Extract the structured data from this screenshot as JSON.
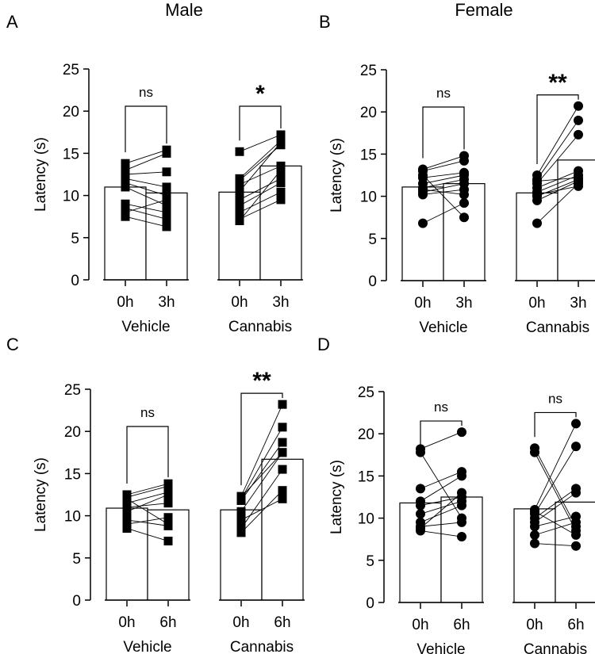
{
  "figure": {
    "column_titles": [
      "Male",
      "Female"
    ]
  },
  "chart_data": [
    {
      "panel": "A",
      "type": "bar",
      "ylabel": "Latency (s)",
      "ylim": [
        0,
        25
      ],
      "yticks": [
        0,
        5,
        10,
        15,
        20,
        25
      ],
      "marker": "square",
      "groups": [
        {
          "name": "Vehicle",
          "conditions": [
            "0h",
            "3h"
          ],
          "means": [
            11.0,
            10.3
          ],
          "pairs": [
            [
              13.8,
              15.4
            ],
            [
              13.0,
              15.0
            ],
            [
              12.5,
              12.8
            ],
            [
              12.0,
              11.0
            ],
            [
              11.5,
              10.0
            ],
            [
              11.0,
              8.8
            ],
            [
              9.0,
              8.0
            ],
            [
              8.5,
              7.2
            ],
            [
              8.0,
              9.5
            ],
            [
              7.5,
              6.3
            ]
          ],
          "significance": "ns"
        },
        {
          "name": "Cannabis",
          "conditions": [
            "0h",
            "3h"
          ],
          "means": [
            10.4,
            13.5
          ],
          "pairs": [
            [
              15.2,
              17.2
            ],
            [
              12.0,
              16.5
            ],
            [
              11.3,
              13.5
            ],
            [
              10.5,
              16.3
            ],
            [
              9.5,
              12.0
            ],
            [
              8.8,
              11.5
            ],
            [
              8.0,
              10.4
            ],
            [
              7.2,
              9.5
            ],
            [
              7.0,
              13.0
            ],
            [
              11.8,
              16.0
            ]
          ],
          "significance": "*"
        }
      ]
    },
    {
      "panel": "B",
      "type": "bar",
      "ylabel": "Latency (s)",
      "ylim": [
        0,
        25
      ],
      "yticks": [
        0,
        5,
        10,
        15,
        20,
        25
      ],
      "marker": "circle",
      "groups": [
        {
          "name": "Vehicle",
          "conditions": [
            "0h",
            "3h"
          ],
          "means": [
            11.1,
            11.5
          ],
          "pairs": [
            [
              13.2,
              14.8
            ],
            [
              13.0,
              14.2
            ],
            [
              12.2,
              12.8
            ],
            [
              11.0,
              12.0
            ],
            [
              10.5,
              11.5
            ],
            [
              10.2,
              10.8
            ],
            [
              6.8,
              9.2
            ],
            [
              12.5,
              7.5
            ],
            [
              11.5,
              12.5
            ],
            [
              10.8,
              10.2
            ]
          ],
          "significance": "ns"
        },
        {
          "name": "Cannabis",
          "conditions": [
            "0h",
            "3h"
          ],
          "means": [
            10.4,
            14.3
          ],
          "pairs": [
            [
              12.5,
              20.7
            ],
            [
              12.0,
              19.0
            ],
            [
              11.5,
              17.3
            ],
            [
              11.0,
              13.0
            ],
            [
              10.5,
              12.5
            ],
            [
              10.0,
              12.0
            ],
            [
              9.5,
              11.8
            ],
            [
              6.8,
              11.5
            ],
            [
              11.8,
              12.2
            ],
            [
              10.2,
              11.2
            ]
          ],
          "significance": "**"
        }
      ]
    },
    {
      "panel": "C",
      "type": "bar",
      "ylabel": "Latency (s)",
      "ylim": [
        0,
        25
      ],
      "yticks": [
        0,
        5,
        10,
        15,
        20,
        25
      ],
      "marker": "square",
      "groups": [
        {
          "name": "Vehicle",
          "conditions": [
            "0h",
            "6h"
          ],
          "means": [
            10.9,
            10.7
          ],
          "pairs": [
            [
              12.5,
              13.8
            ],
            [
              12.2,
              13.5
            ],
            [
              11.5,
              12.8
            ],
            [
              11.0,
              11.5
            ],
            [
              9.5,
              8.8
            ],
            [
              9.0,
              9.8
            ],
            [
              8.5,
              7.0
            ],
            [
              12.0,
              9.0
            ],
            [
              10.5,
              12.5
            ]
          ],
          "significance": "ns"
        },
        {
          "name": "Cannabis",
          "conditions": [
            "0h",
            "6h"
          ],
          "means": [
            10.7,
            16.7
          ],
          "pairs": [
            [
              12.3,
              23.2
            ],
            [
              12.0,
              20.5
            ],
            [
              11.8,
              18.7
            ],
            [
              10.5,
              17.5
            ],
            [
              8.5,
              15.5
            ],
            [
              8.0,
              13.0
            ],
            [
              9.5,
              12.0
            ],
            [
              12.2,
              17.5
            ]
          ],
          "significance": "**"
        }
      ]
    },
    {
      "panel": "D",
      "type": "bar",
      "ylabel": "Latency (s)",
      "ylim": [
        0,
        25
      ],
      "yticks": [
        0,
        5,
        10,
        15,
        20,
        25
      ],
      "marker": "circle",
      "groups": [
        {
          "name": "Vehicle",
          "conditions": [
            "0h",
            "6h"
          ],
          "means": [
            11.8,
            12.5
          ],
          "pairs": [
            [
              18.2,
              20.2
            ],
            [
              17.8,
              10.0
            ],
            [
              13.5,
              15.5
            ],
            [
              12.0,
              15.0
            ],
            [
              11.5,
              12.5
            ],
            [
              10.5,
              12.0
            ],
            [
              9.5,
              11.5
            ],
            [
              9.0,
              9.5
            ],
            [
              8.5,
              7.8
            ],
            [
              8.8,
              13.0
            ]
          ],
          "significance": "ns"
        },
        {
          "name": "Cannabis",
          "conditions": [
            "0h",
            "6h"
          ],
          "means": [
            11.1,
            11.9
          ],
          "pairs": [
            [
              18.3,
              9.0
            ],
            [
              17.8,
              8.5
            ],
            [
              11.0,
              21.2
            ],
            [
              10.5,
              18.5
            ],
            [
              10.0,
              13.5
            ],
            [
              9.5,
              13.0
            ],
            [
              9.0,
              10.2
            ],
            [
              8.0,
              9.5
            ],
            [
              7.0,
              6.7
            ],
            [
              10.8,
              8.0
            ]
          ],
          "significance": "ns"
        }
      ]
    }
  ]
}
